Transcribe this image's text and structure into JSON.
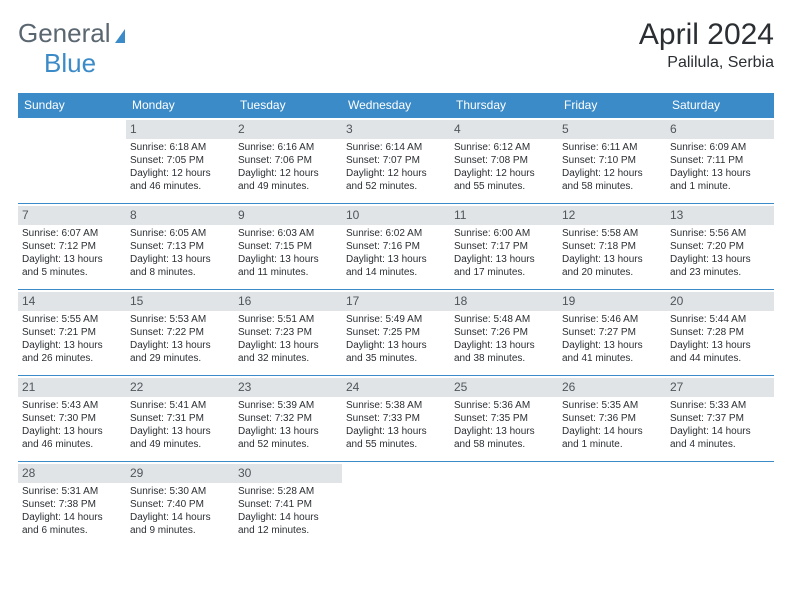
{
  "brand": {
    "part1": "General",
    "part2": "Blue"
  },
  "title": "April 2024",
  "location": "Palilula, Serbia",
  "colors": {
    "header_bg": "#3b8bc9",
    "header_text": "#ffffff",
    "daynum_bg": "#e1e4e6",
    "daynum_text": "#4e565c",
    "body_text": "#2b2f33",
    "logo_gray": "#5a6770",
    "logo_blue": "#3b8bc9",
    "page_bg": "#ffffff"
  },
  "typography": {
    "title_fontsize": 30,
    "location_fontsize": 16,
    "dayhdr_fontsize": 12,
    "daynum_fontsize": 12,
    "cell_fontsize": 10
  },
  "layout": {
    "columns": 7,
    "leading_blanks": 1,
    "trailing_blanks": 4
  },
  "weekdays": [
    "Sunday",
    "Monday",
    "Tuesday",
    "Wednesday",
    "Thursday",
    "Friday",
    "Saturday"
  ],
  "days": [
    {
      "n": "1",
      "sunrise": "Sunrise: 6:18 AM",
      "sunset": "Sunset: 7:05 PM",
      "day1": "Daylight: 12 hours",
      "day2": "and 46 minutes."
    },
    {
      "n": "2",
      "sunrise": "Sunrise: 6:16 AM",
      "sunset": "Sunset: 7:06 PM",
      "day1": "Daylight: 12 hours",
      "day2": "and 49 minutes."
    },
    {
      "n": "3",
      "sunrise": "Sunrise: 6:14 AM",
      "sunset": "Sunset: 7:07 PM",
      "day1": "Daylight: 12 hours",
      "day2": "and 52 minutes."
    },
    {
      "n": "4",
      "sunrise": "Sunrise: 6:12 AM",
      "sunset": "Sunset: 7:08 PM",
      "day1": "Daylight: 12 hours",
      "day2": "and 55 minutes."
    },
    {
      "n": "5",
      "sunrise": "Sunrise: 6:11 AM",
      "sunset": "Sunset: 7:10 PM",
      "day1": "Daylight: 12 hours",
      "day2": "and 58 minutes."
    },
    {
      "n": "6",
      "sunrise": "Sunrise: 6:09 AM",
      "sunset": "Sunset: 7:11 PM",
      "day1": "Daylight: 13 hours",
      "day2": "and 1 minute."
    },
    {
      "n": "7",
      "sunrise": "Sunrise: 6:07 AM",
      "sunset": "Sunset: 7:12 PM",
      "day1": "Daylight: 13 hours",
      "day2": "and 5 minutes."
    },
    {
      "n": "8",
      "sunrise": "Sunrise: 6:05 AM",
      "sunset": "Sunset: 7:13 PM",
      "day1": "Daylight: 13 hours",
      "day2": "and 8 minutes."
    },
    {
      "n": "9",
      "sunrise": "Sunrise: 6:03 AM",
      "sunset": "Sunset: 7:15 PM",
      "day1": "Daylight: 13 hours",
      "day2": "and 11 minutes."
    },
    {
      "n": "10",
      "sunrise": "Sunrise: 6:02 AM",
      "sunset": "Sunset: 7:16 PM",
      "day1": "Daylight: 13 hours",
      "day2": "and 14 minutes."
    },
    {
      "n": "11",
      "sunrise": "Sunrise: 6:00 AM",
      "sunset": "Sunset: 7:17 PM",
      "day1": "Daylight: 13 hours",
      "day2": "and 17 minutes."
    },
    {
      "n": "12",
      "sunrise": "Sunrise: 5:58 AM",
      "sunset": "Sunset: 7:18 PM",
      "day1": "Daylight: 13 hours",
      "day2": "and 20 minutes."
    },
    {
      "n": "13",
      "sunrise": "Sunrise: 5:56 AM",
      "sunset": "Sunset: 7:20 PM",
      "day1": "Daylight: 13 hours",
      "day2": "and 23 minutes."
    },
    {
      "n": "14",
      "sunrise": "Sunrise: 5:55 AM",
      "sunset": "Sunset: 7:21 PM",
      "day1": "Daylight: 13 hours",
      "day2": "and 26 minutes."
    },
    {
      "n": "15",
      "sunrise": "Sunrise: 5:53 AM",
      "sunset": "Sunset: 7:22 PM",
      "day1": "Daylight: 13 hours",
      "day2": "and 29 minutes."
    },
    {
      "n": "16",
      "sunrise": "Sunrise: 5:51 AM",
      "sunset": "Sunset: 7:23 PM",
      "day1": "Daylight: 13 hours",
      "day2": "and 32 minutes."
    },
    {
      "n": "17",
      "sunrise": "Sunrise: 5:49 AM",
      "sunset": "Sunset: 7:25 PM",
      "day1": "Daylight: 13 hours",
      "day2": "and 35 minutes."
    },
    {
      "n": "18",
      "sunrise": "Sunrise: 5:48 AM",
      "sunset": "Sunset: 7:26 PM",
      "day1": "Daylight: 13 hours",
      "day2": "and 38 minutes."
    },
    {
      "n": "19",
      "sunrise": "Sunrise: 5:46 AM",
      "sunset": "Sunset: 7:27 PM",
      "day1": "Daylight: 13 hours",
      "day2": "and 41 minutes."
    },
    {
      "n": "20",
      "sunrise": "Sunrise: 5:44 AM",
      "sunset": "Sunset: 7:28 PM",
      "day1": "Daylight: 13 hours",
      "day2": "and 44 minutes."
    },
    {
      "n": "21",
      "sunrise": "Sunrise: 5:43 AM",
      "sunset": "Sunset: 7:30 PM",
      "day1": "Daylight: 13 hours",
      "day2": "and 46 minutes."
    },
    {
      "n": "22",
      "sunrise": "Sunrise: 5:41 AM",
      "sunset": "Sunset: 7:31 PM",
      "day1": "Daylight: 13 hours",
      "day2": "and 49 minutes."
    },
    {
      "n": "23",
      "sunrise": "Sunrise: 5:39 AM",
      "sunset": "Sunset: 7:32 PM",
      "day1": "Daylight: 13 hours",
      "day2": "and 52 minutes."
    },
    {
      "n": "24",
      "sunrise": "Sunrise: 5:38 AM",
      "sunset": "Sunset: 7:33 PM",
      "day1": "Daylight: 13 hours",
      "day2": "and 55 minutes."
    },
    {
      "n": "25",
      "sunrise": "Sunrise: 5:36 AM",
      "sunset": "Sunset: 7:35 PM",
      "day1": "Daylight: 13 hours",
      "day2": "and 58 minutes."
    },
    {
      "n": "26",
      "sunrise": "Sunrise: 5:35 AM",
      "sunset": "Sunset: 7:36 PM",
      "day1": "Daylight: 14 hours",
      "day2": "and 1 minute."
    },
    {
      "n": "27",
      "sunrise": "Sunrise: 5:33 AM",
      "sunset": "Sunset: 7:37 PM",
      "day1": "Daylight: 14 hours",
      "day2": "and 4 minutes."
    },
    {
      "n": "28",
      "sunrise": "Sunrise: 5:31 AM",
      "sunset": "Sunset: 7:38 PM",
      "day1": "Daylight: 14 hours",
      "day2": "and 6 minutes."
    },
    {
      "n": "29",
      "sunrise": "Sunrise: 5:30 AM",
      "sunset": "Sunset: 7:40 PM",
      "day1": "Daylight: 14 hours",
      "day2": "and 9 minutes."
    },
    {
      "n": "30",
      "sunrise": "Sunrise: 5:28 AM",
      "sunset": "Sunset: 7:41 PM",
      "day1": "Daylight: 14 hours",
      "day2": "and 12 minutes."
    }
  ]
}
